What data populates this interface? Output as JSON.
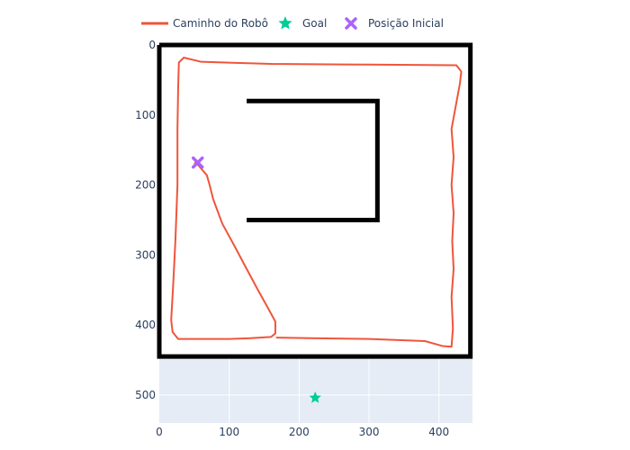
{
  "chart_data": {
    "type": "scatter",
    "grid": true,
    "legend_position": "top",
    "xlim": [
      0,
      448
    ],
    "ylim": [
      540,
      0
    ],
    "xticks": [
      0,
      100,
      200,
      300,
      400
    ],
    "yticks": [
      0,
      100,
      200,
      300,
      400,
      500
    ],
    "walls": [
      [
        [
          0,
          0
        ],
        [
          445,
          0
        ],
        [
          445,
          445
        ],
        [
          0,
          445
        ],
        [
          0,
          0
        ]
      ],
      [
        [
          125,
          80
        ],
        [
          312,
          80
        ],
        [
          312,
          250
        ],
        [
          125,
          250
        ]
      ]
    ],
    "series": [
      {
        "name": "Caminho do Robô",
        "mode": "lines",
        "color": "#ef553b",
        "x": [
          167,
          226,
          300,
          380,
          400,
          411,
          420,
          418,
          421,
          419,
          421,
          418,
          421,
          418,
          413,
          408,
          403,
          388,
          348,
          298,
          258,
          210,
          165
        ],
        "y": [
          418,
          419,
          420,
          421,
          425,
          429,
          431,
          403,
          360,
          320,
          280,
          240,
          200,
          160,
          120,
          95,
          60,
          25,
          26,
          26,
          26,
          26,
          26
        ],
        "x_path": [
          167,
          226,
          300,
          380,
          405,
          418,
          420,
          418,
          421,
          419,
          421,
          418,
          421,
          418,
          430,
          432,
          425,
          300,
          160,
          60,
          35,
          28,
          27,
          26,
          26,
          23,
          20,
          17,
          19,
          27,
          60,
          100,
          128,
          160,
          166,
          166,
          155,
          140,
          125,
          108,
          90,
          77,
          72,
          68,
          62,
          56,
          50
        ],
        "y_path": [
          418,
          419,
          420,
          423,
          430,
          431,
          405,
          360,
          320,
          280,
          240,
          200,
          160,
          120,
          55,
          38,
          29,
          28,
          27,
          24,
          18,
          25,
          60,
          120,
          200,
          280,
          340,
          393,
          410,
          420,
          420,
          420,
          419,
          417,
          412,
          395,
          375,
          348,
          320,
          288,
          255,
          220,
          200,
          186,
          179,
          172,
          168
        ]
      },
      {
        "name": "Goal",
        "mode": "markers",
        "marker": "star",
        "color": "#00cc96",
        "x": [
          223
        ],
        "y": [
          504
        ]
      },
      {
        "name": "Posição Inicial",
        "mode": "markers",
        "marker": "x",
        "color": "#ab63fa",
        "x": [
          55
        ],
        "y": [
          168
        ]
      }
    ]
  }
}
